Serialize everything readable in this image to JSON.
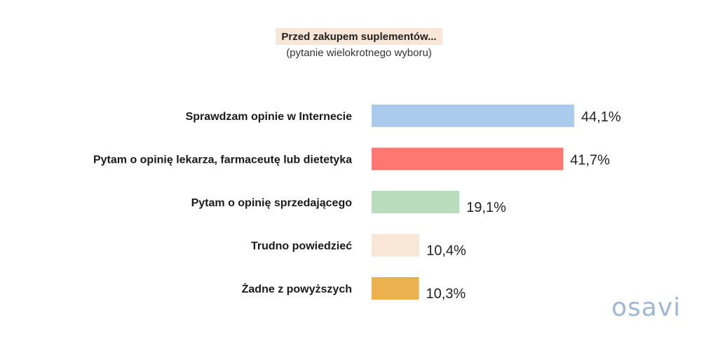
{
  "chart_data": {
    "type": "bar",
    "orientation": "horizontal",
    "title": "Przed zakupem suplementów...",
    "subtitle": "(pytanie wielokrotnego wyboru)",
    "categories": [
      "Sprawdzam opinie w Internecie",
      "Pytam o opinię lekarza, farmaceutę lub dietetyka",
      "Pytam o opinię sprzedającego",
      "Trudno powiedzieć",
      "Żadne z powyższych"
    ],
    "values": [
      44.1,
      41.7,
      19.1,
      10.4,
      10.3
    ],
    "value_labels": [
      "44,1%",
      "41,7%",
      "19,1%",
      "10,4%",
      "10,3%"
    ],
    "colors": [
      "#abcbec",
      "#ff7771",
      "#b9dcbc",
      "#f8e6d6",
      "#ecb04f"
    ],
    "xlim": [
      0,
      100
    ],
    "grid": false,
    "legend": "none"
  },
  "brand": {
    "logo_text": "osavi",
    "logo_color": "#9fb7d6"
  }
}
